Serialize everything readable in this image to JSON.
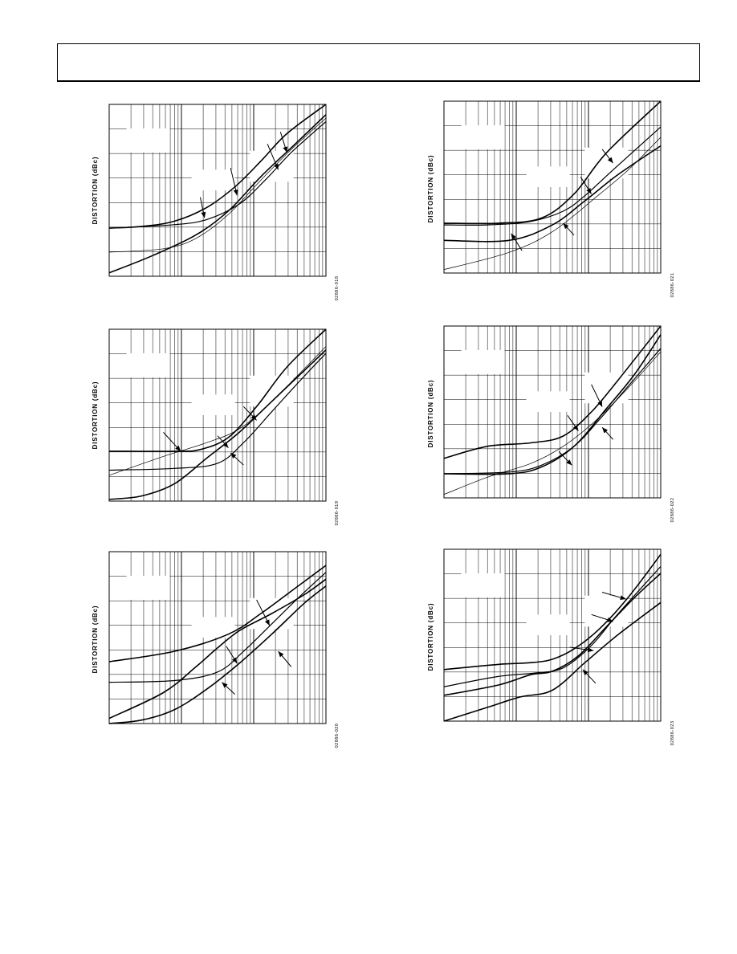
{
  "header": {
    "title": ""
  },
  "charts": [
    {
      "id": "p1",
      "ylabel": "DISTORTION (dBc)",
      "figure_code": "02886-018",
      "curves": [
        {
          "w": 1.6,
          "pts": [
            [
              0,
              0.28
            ],
            [
              0.15,
              0.29
            ],
            [
              0.3,
              0.32
            ],
            [
              0.45,
              0.4
            ],
            [
              0.58,
              0.52
            ],
            [
              0.7,
              0.67
            ],
            [
              0.82,
              0.83
            ],
            [
              1,
              1.0
            ]
          ]
        },
        {
          "w": 1.2,
          "pts": [
            [
              0,
              0.28
            ],
            [
              0.3,
              0.3
            ],
            [
              0.45,
              0.33
            ],
            [
              0.6,
              0.42
            ],
            [
              0.72,
              0.56
            ],
            [
              0.84,
              0.72
            ],
            [
              1,
              0.9
            ]
          ]
        },
        {
          "w": 1.6,
          "pts": [
            [
              0,
              0.02
            ],
            [
              0.2,
              0.12
            ],
            [
              0.4,
              0.24
            ],
            [
              0.55,
              0.38
            ],
            [
              0.7,
              0.58
            ],
            [
              0.85,
              0.76
            ],
            [
              1,
              0.94
            ]
          ]
        },
        {
          "w": 0.7,
          "pts": [
            [
              0,
              0.14
            ],
            [
              0.25,
              0.16
            ],
            [
              0.4,
              0.22
            ],
            [
              0.55,
              0.36
            ],
            [
              0.7,
              0.56
            ],
            [
              0.85,
              0.75
            ],
            [
              1,
              0.92
            ]
          ]
        }
      ],
      "arrows": [
        [
          0.79,
          0.84,
          0.82,
          0.72
        ],
        [
          0.73,
          0.77,
          0.78,
          0.62
        ],
        [
          0.56,
          0.63,
          0.59,
          0.47
        ],
        [
          0.42,
          0.46,
          0.44,
          0.34
        ]
      ]
    },
    {
      "id": "p2",
      "ylabel": "DISTORTION (dBc)",
      "figure_code": "02886-021",
      "curves": [
        {
          "w": 1.6,
          "pts": [
            [
              0,
              0.29
            ],
            [
              0.25,
              0.29
            ],
            [
              0.45,
              0.32
            ],
            [
              0.6,
              0.46
            ],
            [
              0.75,
              0.7
            ],
            [
              1,
              1.0
            ]
          ]
        },
        {
          "w": 1.2,
          "pts": [
            [
              0,
              0.28
            ],
            [
              0.2,
              0.28
            ],
            [
              0.4,
              0.3
            ],
            [
              0.55,
              0.36
            ],
            [
              0.65,
              0.45
            ],
            [
              0.78,
              0.6
            ],
            [
              1,
              0.85
            ]
          ]
        },
        {
          "w": 1.6,
          "pts": [
            [
              0,
              0.19
            ],
            [
              0.3,
              0.19
            ],
            [
              0.5,
              0.28
            ],
            [
              0.65,
              0.42
            ],
            [
              0.8,
              0.57
            ],
            [
              1,
              0.74
            ]
          ]
        },
        {
          "w": 0.7,
          "pts": [
            [
              0,
              0.02
            ],
            [
              0.3,
              0.12
            ],
            [
              0.5,
              0.24
            ],
            [
              0.7,
              0.44
            ],
            [
              0.85,
              0.6
            ],
            [
              1,
              0.79
            ]
          ]
        }
      ],
      "arrows": [
        [
          0.73,
          0.72,
          0.78,
          0.64
        ],
        [
          0.63,
          0.56,
          0.68,
          0.46
        ],
        [
          0.36,
          0.13,
          0.31,
          0.23
        ],
        [
          0.6,
          0.22,
          0.55,
          0.29
        ]
      ]
    },
    {
      "id": "p3",
      "ylabel": "DISTORTION (dBc)",
      "figure_code": "02886-019",
      "curves": [
        {
          "w": 1.6,
          "pts": [
            [
              0,
              0.29
            ],
            [
              0.3,
              0.29
            ],
            [
              0.42,
              0.3
            ],
            [
              0.55,
              0.37
            ],
            [
              0.68,
              0.55
            ],
            [
              0.82,
              0.78
            ],
            [
              1,
              1.0
            ]
          ]
        },
        {
          "w": 1.2,
          "pts": [
            [
              0,
              0.18
            ],
            [
              0.3,
              0.19
            ],
            [
              0.5,
              0.22
            ],
            [
              0.62,
              0.34
            ],
            [
              0.75,
              0.52
            ],
            [
              0.88,
              0.7
            ],
            [
              1,
              0.86
            ]
          ]
        },
        {
          "w": 1.6,
          "pts": [
            [
              0,
              0.01
            ],
            [
              0.15,
              0.03
            ],
            [
              0.3,
              0.1
            ],
            [
              0.45,
              0.25
            ],
            [
              0.6,
              0.4
            ],
            [
              0.75,
              0.58
            ],
            [
              0.9,
              0.76
            ],
            [
              1,
              0.88
            ]
          ]
        },
        {
          "w": 0.7,
          "pts": [
            [
              0,
              0.15
            ],
            [
              0.25,
              0.26
            ],
            [
              0.45,
              0.34
            ],
            [
              0.6,
              0.42
            ],
            [
              0.75,
              0.58
            ],
            [
              1,
              0.9
            ]
          ]
        }
      ],
      "arrows": [
        [
          0.62,
          0.55,
          0.68,
          0.47
        ],
        [
          0.5,
          0.38,
          0.55,
          0.31
        ],
        [
          0.25,
          0.4,
          0.33,
          0.29
        ],
        [
          0.62,
          0.21,
          0.56,
          0.28
        ]
      ]
    },
    {
      "id": "p4",
      "ylabel": "DISTORTION (dBc)",
      "figure_code": "02886-022",
      "curves": [
        {
          "w": 1.6,
          "pts": [
            [
              0,
              0.23
            ],
            [
              0.2,
              0.3
            ],
            [
              0.4,
              0.32
            ],
            [
              0.55,
              0.36
            ],
            [
              0.68,
              0.5
            ],
            [
              0.8,
              0.68
            ],
            [
              1,
              1.0
            ]
          ]
        },
        {
          "w": 1.2,
          "pts": [
            [
              0,
              0.14
            ],
            [
              0.3,
              0.15
            ],
            [
              0.45,
              0.19
            ],
            [
              0.6,
              0.3
            ],
            [
              0.72,
              0.46
            ],
            [
              0.85,
              0.65
            ],
            [
              1,
              0.87
            ]
          ]
        },
        {
          "w": 1.6,
          "pts": [
            [
              0,
              0.14
            ],
            [
              0.3,
              0.14
            ],
            [
              0.45,
              0.18
            ],
            [
              0.6,
              0.3
            ],
            [
              0.75,
              0.52
            ],
            [
              0.88,
              0.72
            ],
            [
              1,
              0.95
            ]
          ]
        },
        {
          "w": 0.7,
          "pts": [
            [
              0,
              0.02
            ],
            [
              0.2,
              0.12
            ],
            [
              0.4,
              0.2
            ],
            [
              0.55,
              0.3
            ],
            [
              0.7,
              0.45
            ],
            [
              0.85,
              0.64
            ],
            [
              1,
              0.85
            ]
          ]
        }
      ],
      "arrows": [
        [
          0.68,
          0.66,
          0.73,
          0.53
        ],
        [
          0.57,
          0.48,
          0.62,
          0.39
        ],
        [
          0.53,
          0.27,
          0.59,
          0.19
        ],
        [
          0.78,
          0.34,
          0.73,
          0.41
        ]
      ]
    },
    {
      "id": "p5",
      "ylabel": "DISTORTION (dBc)",
      "figure_code": "02886-020",
      "curves": [
        {
          "w": 1.6,
          "pts": [
            [
              0,
              0.36
            ],
            [
              0.3,
              0.42
            ],
            [
              0.55,
              0.52
            ],
            [
              0.7,
              0.64
            ],
            [
              0.85,
              0.78
            ],
            [
              1,
              0.92
            ]
          ]
        },
        {
          "w": 1.2,
          "pts": [
            [
              0,
              0.24
            ],
            [
              0.3,
              0.25
            ],
            [
              0.5,
              0.3
            ],
            [
              0.62,
              0.42
            ],
            [
              0.75,
              0.58
            ],
            [
              0.88,
              0.74
            ],
            [
              1,
              0.88
            ]
          ]
        },
        {
          "w": 1.6,
          "pts": [
            [
              0,
              0.03
            ],
            [
              0.25,
              0.18
            ],
            [
              0.4,
              0.33
            ],
            [
              0.5,
              0.44
            ],
            [
              0.6,
              0.54
            ],
            [
              0.75,
              0.64
            ],
            [
              0.9,
              0.75
            ],
            [
              1,
              0.84
            ]
          ]
        },
        {
          "w": 1.6,
          "pts": [
            [
              0,
              0.0
            ],
            [
              0.15,
              0.02
            ],
            [
              0.3,
              0.08
            ],
            [
              0.45,
              0.2
            ],
            [
              0.6,
              0.35
            ],
            [
              0.75,
              0.52
            ],
            [
              0.9,
              0.7
            ],
            [
              1,
              0.8
            ]
          ]
        }
      ],
      "arrows": [
        [
          0.68,
          0.72,
          0.74,
          0.57
        ],
        [
          0.54,
          0.45,
          0.59,
          0.35
        ],
        [
          0.84,
          0.33,
          0.78,
          0.42
        ],
        [
          0.58,
          0.17,
          0.52,
          0.24
        ]
      ]
    },
    {
      "id": "p6",
      "ylabel": "DISTORTION (dBc)",
      "figure_code": "02886-023",
      "curves": [
        {
          "w": 1.6,
          "pts": [
            [
              0,
              0.3
            ],
            [
              0.25,
              0.33
            ],
            [
              0.4,
              0.34
            ],
            [
              0.5,
              0.36
            ],
            [
              0.6,
              0.42
            ],
            [
              0.72,
              0.54
            ],
            [
              0.85,
              0.72
            ],
            [
              1,
              0.97
            ]
          ]
        },
        {
          "w": 1.2,
          "pts": [
            [
              0,
              0.2
            ],
            [
              0.25,
              0.26
            ],
            [
              0.42,
              0.28
            ],
            [
              0.55,
              0.31
            ],
            [
              0.68,
              0.44
            ],
            [
              0.8,
              0.62
            ],
            [
              1,
              0.9
            ]
          ]
        },
        {
          "w": 1.6,
          "pts": [
            [
              0,
              0.15
            ],
            [
              0.25,
              0.21
            ],
            [
              0.4,
              0.27
            ],
            [
              0.5,
              0.29
            ],
            [
              0.62,
              0.38
            ],
            [
              0.75,
              0.55
            ],
            [
              0.88,
              0.72
            ],
            [
              1,
              0.86
            ]
          ]
        },
        {
          "w": 1.6,
          "pts": [
            [
              0,
              0.0
            ],
            [
              0.2,
              0.08
            ],
            [
              0.35,
              0.14
            ],
            [
              0.5,
              0.18
            ],
            [
              0.65,
              0.34
            ],
            [
              0.8,
              0.5
            ],
            [
              1,
              0.69
            ]
          ]
        }
      ],
      "arrows": [
        [
          0.73,
          0.75,
          0.84,
          0.71
        ],
        [
          0.68,
          0.62,
          0.78,
          0.58
        ],
        [
          0.58,
          0.43,
          0.69,
          0.41
        ],
        [
          0.7,
          0.22,
          0.64,
          0.3
        ]
      ]
    }
  ],
  "chart_data": [
    {
      "type": "line",
      "ylabel": "DISTORTION (dBc)",
      "figure_code": "02886-018",
      "x_scale": "log",
      "series_count": 4
    },
    {
      "type": "line",
      "ylabel": "DISTORTION (dBc)",
      "figure_code": "02886-021",
      "x_scale": "log",
      "series_count": 4
    },
    {
      "type": "line",
      "ylabel": "DISTORTION (dBc)",
      "figure_code": "02886-019",
      "x_scale": "log",
      "series_count": 4
    },
    {
      "type": "line",
      "ylabel": "DISTORTION (dBc)",
      "figure_code": "02886-022",
      "x_scale": "log",
      "series_count": 4
    },
    {
      "type": "line",
      "ylabel": "DISTORTION (dBc)",
      "figure_code": "02886-020",
      "x_scale": "log",
      "series_count": 4
    },
    {
      "type": "line",
      "ylabel": "DISTORTION (dBc)",
      "figure_code": "02886-023",
      "x_scale": "log",
      "series_count": 4
    }
  ]
}
